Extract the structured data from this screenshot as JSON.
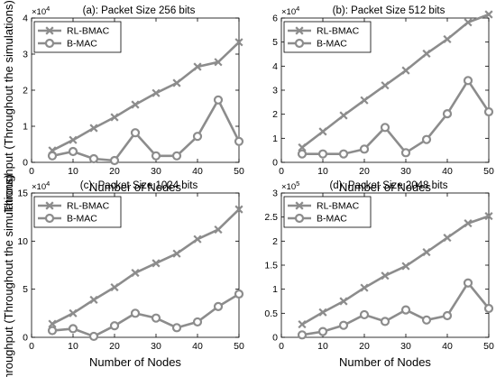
{
  "figure": {
    "ylabel": "Throughput (Throughout the simulations)"
  },
  "colors": {
    "series": "#8c8c8c",
    "axes": "#000000",
    "background": "#ffffff"
  },
  "chart_data": [
    {
      "type": "line",
      "title": "(a): Packet Size 256 bits",
      "xlabel": "Number of Nodes",
      "ylabel": "Throughput (Throughout the simulations)",
      "x": [
        5,
        10,
        15,
        20,
        25,
        30,
        35,
        40,
        45,
        50
      ],
      "xlim": [
        0,
        50
      ],
      "xticks": [
        0,
        10,
        20,
        30,
        40,
        50
      ],
      "ylim": [
        0,
        4
      ],
      "yticks": [
        0,
        1,
        2,
        3,
        4
      ],
      "y_multiplier": "×10^4",
      "grid": false,
      "legend_position": "top-left",
      "series": [
        {
          "name": "RL-BMAC",
          "marker": "x",
          "values": [
            0.33,
            0.62,
            0.95,
            1.25,
            1.6,
            1.92,
            2.2,
            2.65,
            2.78,
            3.33
          ]
        },
        {
          "name": "B-MAC",
          "marker": "o",
          "values": [
            0.18,
            0.3,
            0.1,
            0.05,
            0.82,
            0.18,
            0.18,
            0.72,
            1.73,
            0.58
          ]
        }
      ]
    },
    {
      "type": "line",
      "title": "(b): Packet Size 512 bits",
      "xlabel": "Number of Nodes",
      "ylabel": "Throughput (Throughout the simulations)",
      "x": [
        5,
        10,
        15,
        20,
        25,
        30,
        35,
        40,
        45,
        50
      ],
      "xlim": [
        0,
        50
      ],
      "xticks": [
        0,
        10,
        20,
        30,
        40,
        50
      ],
      "ylim": [
        0,
        6
      ],
      "yticks": [
        0,
        1,
        2,
        3,
        4,
        5,
        6
      ],
      "y_multiplier": "×10^4",
      "grid": false,
      "legend_position": "top-left",
      "series": [
        {
          "name": "RL-BMAC",
          "marker": "x",
          "values": [
            0.62,
            1.28,
            1.95,
            2.58,
            3.2,
            3.82,
            4.52,
            5.12,
            5.82,
            6.15
          ]
        },
        {
          "name": "B-MAC",
          "marker": "o",
          "values": [
            0.35,
            0.35,
            0.35,
            0.55,
            1.45,
            0.4,
            0.95,
            2.02,
            3.4,
            2.1
          ]
        }
      ]
    },
    {
      "type": "line",
      "title": "(c): Packet Size 1024 bits",
      "xlabel": "Number of Nodes",
      "ylabel": "Throughput (Throughout the simulations)",
      "x": [
        5,
        10,
        15,
        20,
        25,
        30,
        35,
        40,
        45,
        50
      ],
      "xlim": [
        0,
        50
      ],
      "xticks": [
        0,
        10,
        20,
        30,
        40,
        50
      ],
      "ylim": [
        0,
        15
      ],
      "yticks": [
        0,
        5,
        10,
        15
      ],
      "y_multiplier": "×10^4",
      "grid": false,
      "legend_position": "top-left",
      "series": [
        {
          "name": "RL-BMAC",
          "marker": "x",
          "values": [
            1.4,
            2.5,
            3.9,
            5.2,
            6.7,
            7.7,
            8.7,
            10.2,
            11.2,
            13.3
          ]
        },
        {
          "name": "B-MAC",
          "marker": "o",
          "values": [
            0.7,
            0.9,
            0.1,
            1.2,
            2.5,
            2.0,
            1.0,
            1.6,
            3.2,
            4.5
          ]
        }
      ]
    },
    {
      "type": "line",
      "title": "(d): Packet Size 2048 bits",
      "xlabel": "Number of Nodes",
      "ylabel": "Throughput (Throughout the simulations)",
      "x": [
        5,
        10,
        15,
        20,
        25,
        30,
        35,
        40,
        45,
        50
      ],
      "xlim": [
        0,
        50
      ],
      "xticks": [
        0,
        10,
        20,
        30,
        40,
        50
      ],
      "ylim": [
        0,
        3
      ],
      "yticks": [
        0,
        0.5,
        1,
        1.5,
        2,
        2.5,
        3
      ],
      "y_multiplier": "×10^5",
      "grid": false,
      "legend_position": "top-left",
      "series": [
        {
          "name": "RL-BMAC",
          "marker": "x",
          "values": [
            0.27,
            0.52,
            0.75,
            1.03,
            1.28,
            1.48,
            1.77,
            2.07,
            2.37,
            2.52
          ]
        },
        {
          "name": "B-MAC",
          "marker": "o",
          "values": [
            0.05,
            0.12,
            0.25,
            0.47,
            0.33,
            0.57,
            0.36,
            0.45,
            1.13,
            0.6
          ]
        }
      ]
    }
  ]
}
